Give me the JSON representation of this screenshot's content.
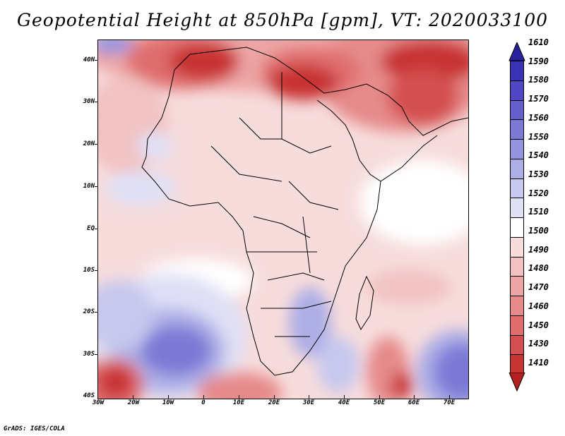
{
  "title": "Geopotential Height at 850hPa [gpm], VT: 2020033100",
  "credit": "GrADS: IGES/COLA",
  "axes": {
    "lat_labels": [
      "40N",
      "30N",
      "20N",
      "10N",
      "EQ",
      "10S",
      "20S",
      "30S",
      "40S"
    ],
    "lon_labels": [
      "30W",
      "20W",
      "10W",
      "0",
      "10E",
      "20E",
      "30E",
      "40E",
      "50E",
      "60E",
      "70E"
    ]
  },
  "colorbar": {
    "labels": [
      "1610",
      "1590",
      "1580",
      "1570",
      "1560",
      "1550",
      "1540",
      "1530",
      "1520",
      "1510",
      "1500",
      "1490",
      "1480",
      "1470",
      "1460",
      "1450",
      "1430",
      "1410"
    ],
    "colors": [
      "#2a1f9c",
      "#3b33b5",
      "#5045c2",
      "#6660cc",
      "#7c79d6",
      "#9593de",
      "#adaee6",
      "#c6c8ee",
      "#dfe0f6",
      "#ffffff",
      "#f7dcdc",
      "#f2c2c2",
      "#eda5a5",
      "#e68a8a",
      "#df6d6d",
      "#d45050",
      "#c83333",
      "#b41f1f"
    ]
  }
}
